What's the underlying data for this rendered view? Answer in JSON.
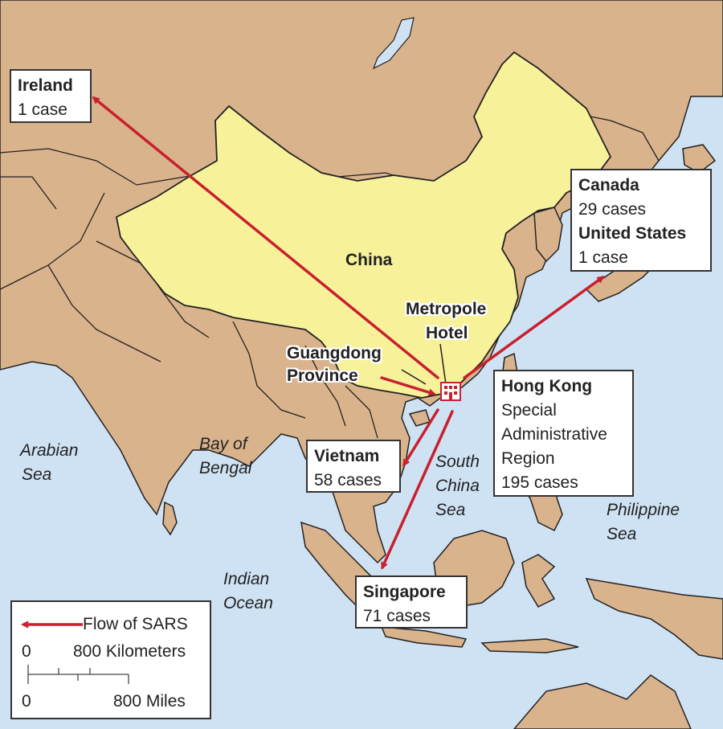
{
  "map": {
    "colors": {
      "sea": "#cfe2f3",
      "land": "#d9b38c",
      "china": "#f7f19a",
      "border": "#222222",
      "arrow": "#c8202f"
    },
    "labels": {
      "china": "China",
      "metropole_line1": "Metropole",
      "metropole_line2": "Hotel",
      "guangdong_line1": "Guangdong",
      "guangdong_line2": "Province"
    },
    "seas": {
      "arabian_1": "Arabian",
      "arabian_2": "Sea",
      "bengal_1": "Bay of",
      "bengal_2": "Bengal",
      "indian_1": "Indian",
      "indian_2": "Ocean",
      "scs_1": "South",
      "scs_2": "China",
      "scs_3": "Sea",
      "phil_1": "Philippine",
      "phil_2": "Sea"
    },
    "destinations": {
      "ireland": {
        "name": "Ireland",
        "cases": "1 case"
      },
      "canada": {
        "name": "Canada",
        "cases": "29 cases"
      },
      "usa": {
        "name": "United States",
        "cases": "1 case"
      },
      "hong_kong": {
        "name": "Hong Kong",
        "line2": "Special",
        "line3": "Administrative",
        "line4": "Region",
        "cases": "195 cases"
      },
      "vietnam": {
        "name": "Vietnam",
        "cases": "58 cases"
      },
      "singapore": {
        "name": "Singapore",
        "cases": "71 cases"
      }
    },
    "legend": {
      "flow_label": "Flow of SARS",
      "km_zero": "0",
      "km_label": "800 Kilometers",
      "mi_zero": "0",
      "mi_label": "800 Miles"
    },
    "icons": {
      "hotel": "hotel-icon",
      "arrow": "arrow-icon"
    }
  }
}
